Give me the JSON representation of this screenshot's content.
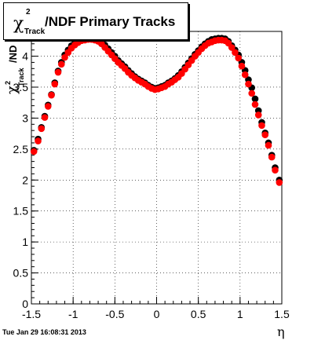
{
  "title": {
    "symbol": "χ",
    "superscript": "2",
    "subscript": "Track",
    "text": "/NDF  Primary Tracks"
  },
  "timestamp": "Tue Jan 29 16:08:31 2013",
  "chart_data": {
    "type": "scatter",
    "title": "χ²Track/NDF  Primary Tracks",
    "xlabel": "η",
    "ylabel": "χ²Track/ND",
    "xlim": [
      -1.5,
      1.5
    ],
    "ylim": [
      0,
      4.4
    ],
    "xticks": [
      "-1.5",
      "-1",
      "-0.5",
      "0",
      "0.5",
      "1",
      "1.5"
    ],
    "yticks": [
      "0",
      "0.5",
      "1",
      "1.5",
      "2",
      "2.5",
      "3",
      "3.5",
      "4"
    ],
    "grid": true,
    "series": [
      {
        "color": "#000000",
        "x": [
          -1.47,
          -1.42,
          -1.38,
          -1.34,
          -1.3,
          -1.26,
          -1.22,
          -1.18,
          -1.14,
          -1.1,
          -1.06,
          -1.02,
          -0.98,
          -0.94,
          -0.9,
          -0.86,
          -0.82,
          -0.78,
          -0.74,
          -0.7,
          -0.66,
          -0.62,
          -0.58,
          -0.54,
          -0.5,
          -0.46,
          -0.42,
          -0.38,
          -0.34,
          -0.3,
          -0.26,
          -0.22,
          -0.18,
          -0.14,
          -0.1,
          -0.06,
          -0.02,
          0.02,
          0.06,
          0.1,
          0.14,
          0.18,
          0.22,
          0.26,
          0.3,
          0.34,
          0.38,
          0.42,
          0.46,
          0.5,
          0.54,
          0.58,
          0.62,
          0.66,
          0.7,
          0.74,
          0.78,
          0.82,
          0.86,
          0.9,
          0.94,
          0.98,
          1.02,
          1.06,
          1.1,
          1.14,
          1.18,
          1.22,
          1.26,
          1.3,
          1.34,
          1.38,
          1.42,
          1.47
        ],
        "y": [
          2.48,
          2.66,
          2.85,
          3.03,
          3.21,
          3.38,
          3.57,
          3.76,
          3.9,
          4.02,
          4.1,
          4.17,
          4.21,
          4.25,
          4.27,
          4.28,
          4.29,
          4.29,
          4.29,
          4.27,
          4.23,
          4.18,
          4.12,
          4.06,
          4.0,
          3.93,
          3.88,
          3.83,
          3.77,
          3.72,
          3.67,
          3.63,
          3.6,
          3.57,
          3.53,
          3.5,
          3.48,
          3.49,
          3.51,
          3.53,
          3.57,
          3.6,
          3.64,
          3.69,
          3.75,
          3.82,
          3.89,
          3.96,
          4.03,
          4.09,
          4.15,
          4.2,
          4.24,
          4.27,
          4.28,
          4.29,
          4.29,
          4.28,
          4.24,
          4.17,
          4.1,
          4.02,
          3.9,
          3.77,
          3.62,
          3.49,
          3.31,
          3.12,
          2.93,
          2.76,
          2.6,
          2.4,
          2.2,
          2.0
        ]
      },
      {
        "color": "#ff0000",
        "x": [
          -1.47,
          -1.42,
          -1.38,
          -1.34,
          -1.3,
          -1.26,
          -1.22,
          -1.18,
          -1.14,
          -1.1,
          -1.06,
          -1.02,
          -0.98,
          -0.94,
          -0.9,
          -0.86,
          -0.82,
          -0.78,
          -0.74,
          -0.7,
          -0.66,
          -0.62,
          -0.58,
          -0.54,
          -0.5,
          -0.46,
          -0.42,
          -0.38,
          -0.34,
          -0.3,
          -0.26,
          -0.22,
          -0.18,
          -0.14,
          -0.1,
          -0.06,
          -0.02,
          0.02,
          0.06,
          0.1,
          0.14,
          0.18,
          0.22,
          0.26,
          0.3,
          0.34,
          0.38,
          0.42,
          0.46,
          0.5,
          0.54,
          0.58,
          0.62,
          0.66,
          0.7,
          0.74,
          0.78,
          0.82,
          0.86,
          0.9,
          0.94,
          0.98,
          1.02,
          1.06,
          1.1,
          1.14,
          1.18,
          1.22,
          1.26,
          1.3,
          1.34,
          1.38,
          1.42,
          1.47
        ],
        "y": [
          2.46,
          2.63,
          2.83,
          3.01,
          3.19,
          3.37,
          3.55,
          3.74,
          3.87,
          3.98,
          4.06,
          4.13,
          4.18,
          4.22,
          4.25,
          4.26,
          4.27,
          4.27,
          4.26,
          4.24,
          4.2,
          4.14,
          4.08,
          4.02,
          3.96,
          3.9,
          3.85,
          3.8,
          3.74,
          3.69,
          3.65,
          3.61,
          3.58,
          3.55,
          3.51,
          3.48,
          3.46,
          3.47,
          3.49,
          3.51,
          3.55,
          3.58,
          3.62,
          3.66,
          3.72,
          3.79,
          3.86,
          3.93,
          4.0,
          4.06,
          4.12,
          4.17,
          4.21,
          4.23,
          4.25,
          4.26,
          4.26,
          4.25,
          4.21,
          4.14,
          4.06,
          3.97,
          3.84,
          3.7,
          3.55,
          3.4,
          3.22,
          3.05,
          2.88,
          2.73,
          2.56,
          2.37,
          2.16,
          1.96
        ]
      }
    ]
  }
}
